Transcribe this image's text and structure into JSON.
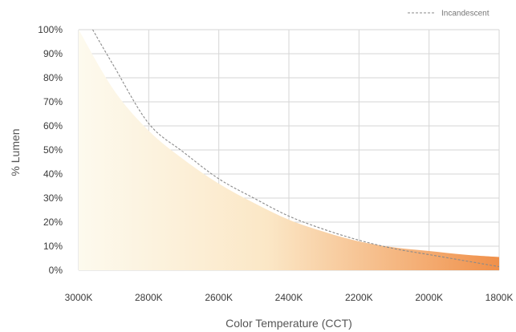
{
  "chart_data": {
    "type": "area",
    "xlabel": "Color Temperature (CCT)",
    "ylabel": "% Lumen",
    "x_ticks": [
      "3000K",
      "2800K",
      "2600K",
      "2400K",
      "2200K",
      "2000K",
      "1800K"
    ],
    "y_ticks": [
      "100%",
      "90%",
      "80%",
      "70%",
      "60%",
      "50%",
      "40%",
      "30%",
      "20%",
      "10%",
      "0%"
    ],
    "xlim": [
      3000,
      1800
    ],
    "ylim": [
      0,
      100
    ],
    "grid": true,
    "legend_position": "top-right",
    "series": [
      {
        "name": "Incandescent",
        "style": "dashed line",
        "color": "#8a8a8a",
        "x": [
          2960,
          2900,
          2800,
          2700,
          2600,
          2500,
          2400,
          2300,
          2200,
          2100,
          2000,
          1900,
          1800
        ],
        "y": [
          100,
          85,
          61,
          49,
          38,
          30,
          22.5,
          17,
          12.5,
          9,
          6.5,
          4,
          1.5
        ]
      },
      {
        "type": "area",
        "style": "gradient fill",
        "x": [
          3000,
          2900,
          2800,
          2700,
          2600,
          2500,
          2400,
          2300,
          2200,
          2100,
          2000,
          1900,
          1800
        ],
        "y": [
          100,
          75,
          58,
          46,
          36,
          28,
          21,
          16,
          12,
          9.5,
          8,
          6.5,
          5.5
        ]
      }
    ],
    "colors": {
      "area_left": "#fdfaee",
      "area_mid": "#fbe7c6",
      "area_right": "#f0904a",
      "grid": "#d6d6d6"
    }
  }
}
